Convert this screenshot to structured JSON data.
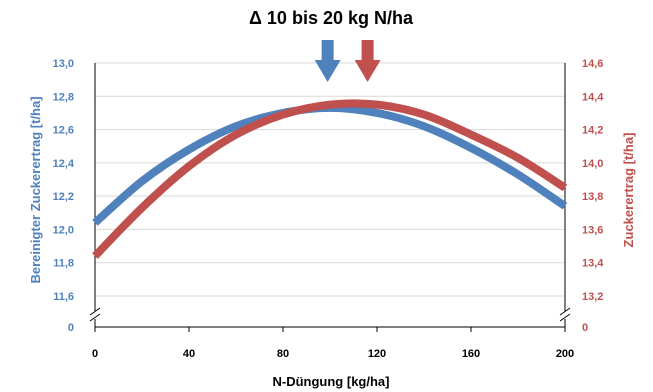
{
  "colors": {
    "blue": "#4f81bd",
    "red": "#c0504d",
    "grid": "#d9d9d9",
    "axis": "#000000"
  },
  "chart_data": {
    "type": "line",
    "title": "Δ 10 bis 20 kg N/ha",
    "xlabel": "N-Düngung [kg/ha]",
    "ylabel_left": "Bereinigter Zuckerertrag [t/ha]",
    "ylabel_right": "Zuckerertrag [t/ha]",
    "x_ticks": [
      "0",
      "40",
      "80",
      "120",
      "160",
      "200"
    ],
    "xlim": [
      0,
      200
    ],
    "y_left_ticks": [
      "13,0",
      "12,8",
      "12,6",
      "12,4",
      "12,2",
      "12,0",
      "11,8",
      "11,6"
    ],
    "y_left_zero": "0",
    "ylim_left": [
      11.6,
      13.0
    ],
    "y_right_ticks": [
      "14,6",
      "14,4",
      "14,2",
      "14,0",
      "13,8",
      "13,6",
      "13,4",
      "13,2"
    ],
    "y_right_zero": "0",
    "ylim_right": [
      13.2,
      14.6
    ],
    "axis_break": true,
    "grid": true,
    "series": [
      {
        "axis": "left",
        "color": "#4f81bd",
        "x": [
          0,
          20,
          40,
          60,
          80,
          100,
          120,
          140,
          160,
          180,
          200
        ],
        "y": [
          12.04,
          12.29,
          12.48,
          12.62,
          12.7,
          12.73,
          12.7,
          12.62,
          12.49,
          12.33,
          12.14
        ]
      },
      {
        "axis": "right",
        "color": "#c0504d",
        "x": [
          0,
          20,
          40,
          60,
          80,
          100,
          120,
          140,
          160,
          180,
          200
        ],
        "y": [
          13.44,
          13.73,
          13.98,
          14.17,
          14.29,
          14.35,
          14.35,
          14.29,
          14.17,
          14.03,
          13.85
        ]
      }
    ],
    "annotations": [
      {
        "type": "arrow-down",
        "x": 99,
        "color": "#4f81bd"
      },
      {
        "type": "arrow-down",
        "x": 116,
        "color": "#c0504d"
      }
    ]
  }
}
